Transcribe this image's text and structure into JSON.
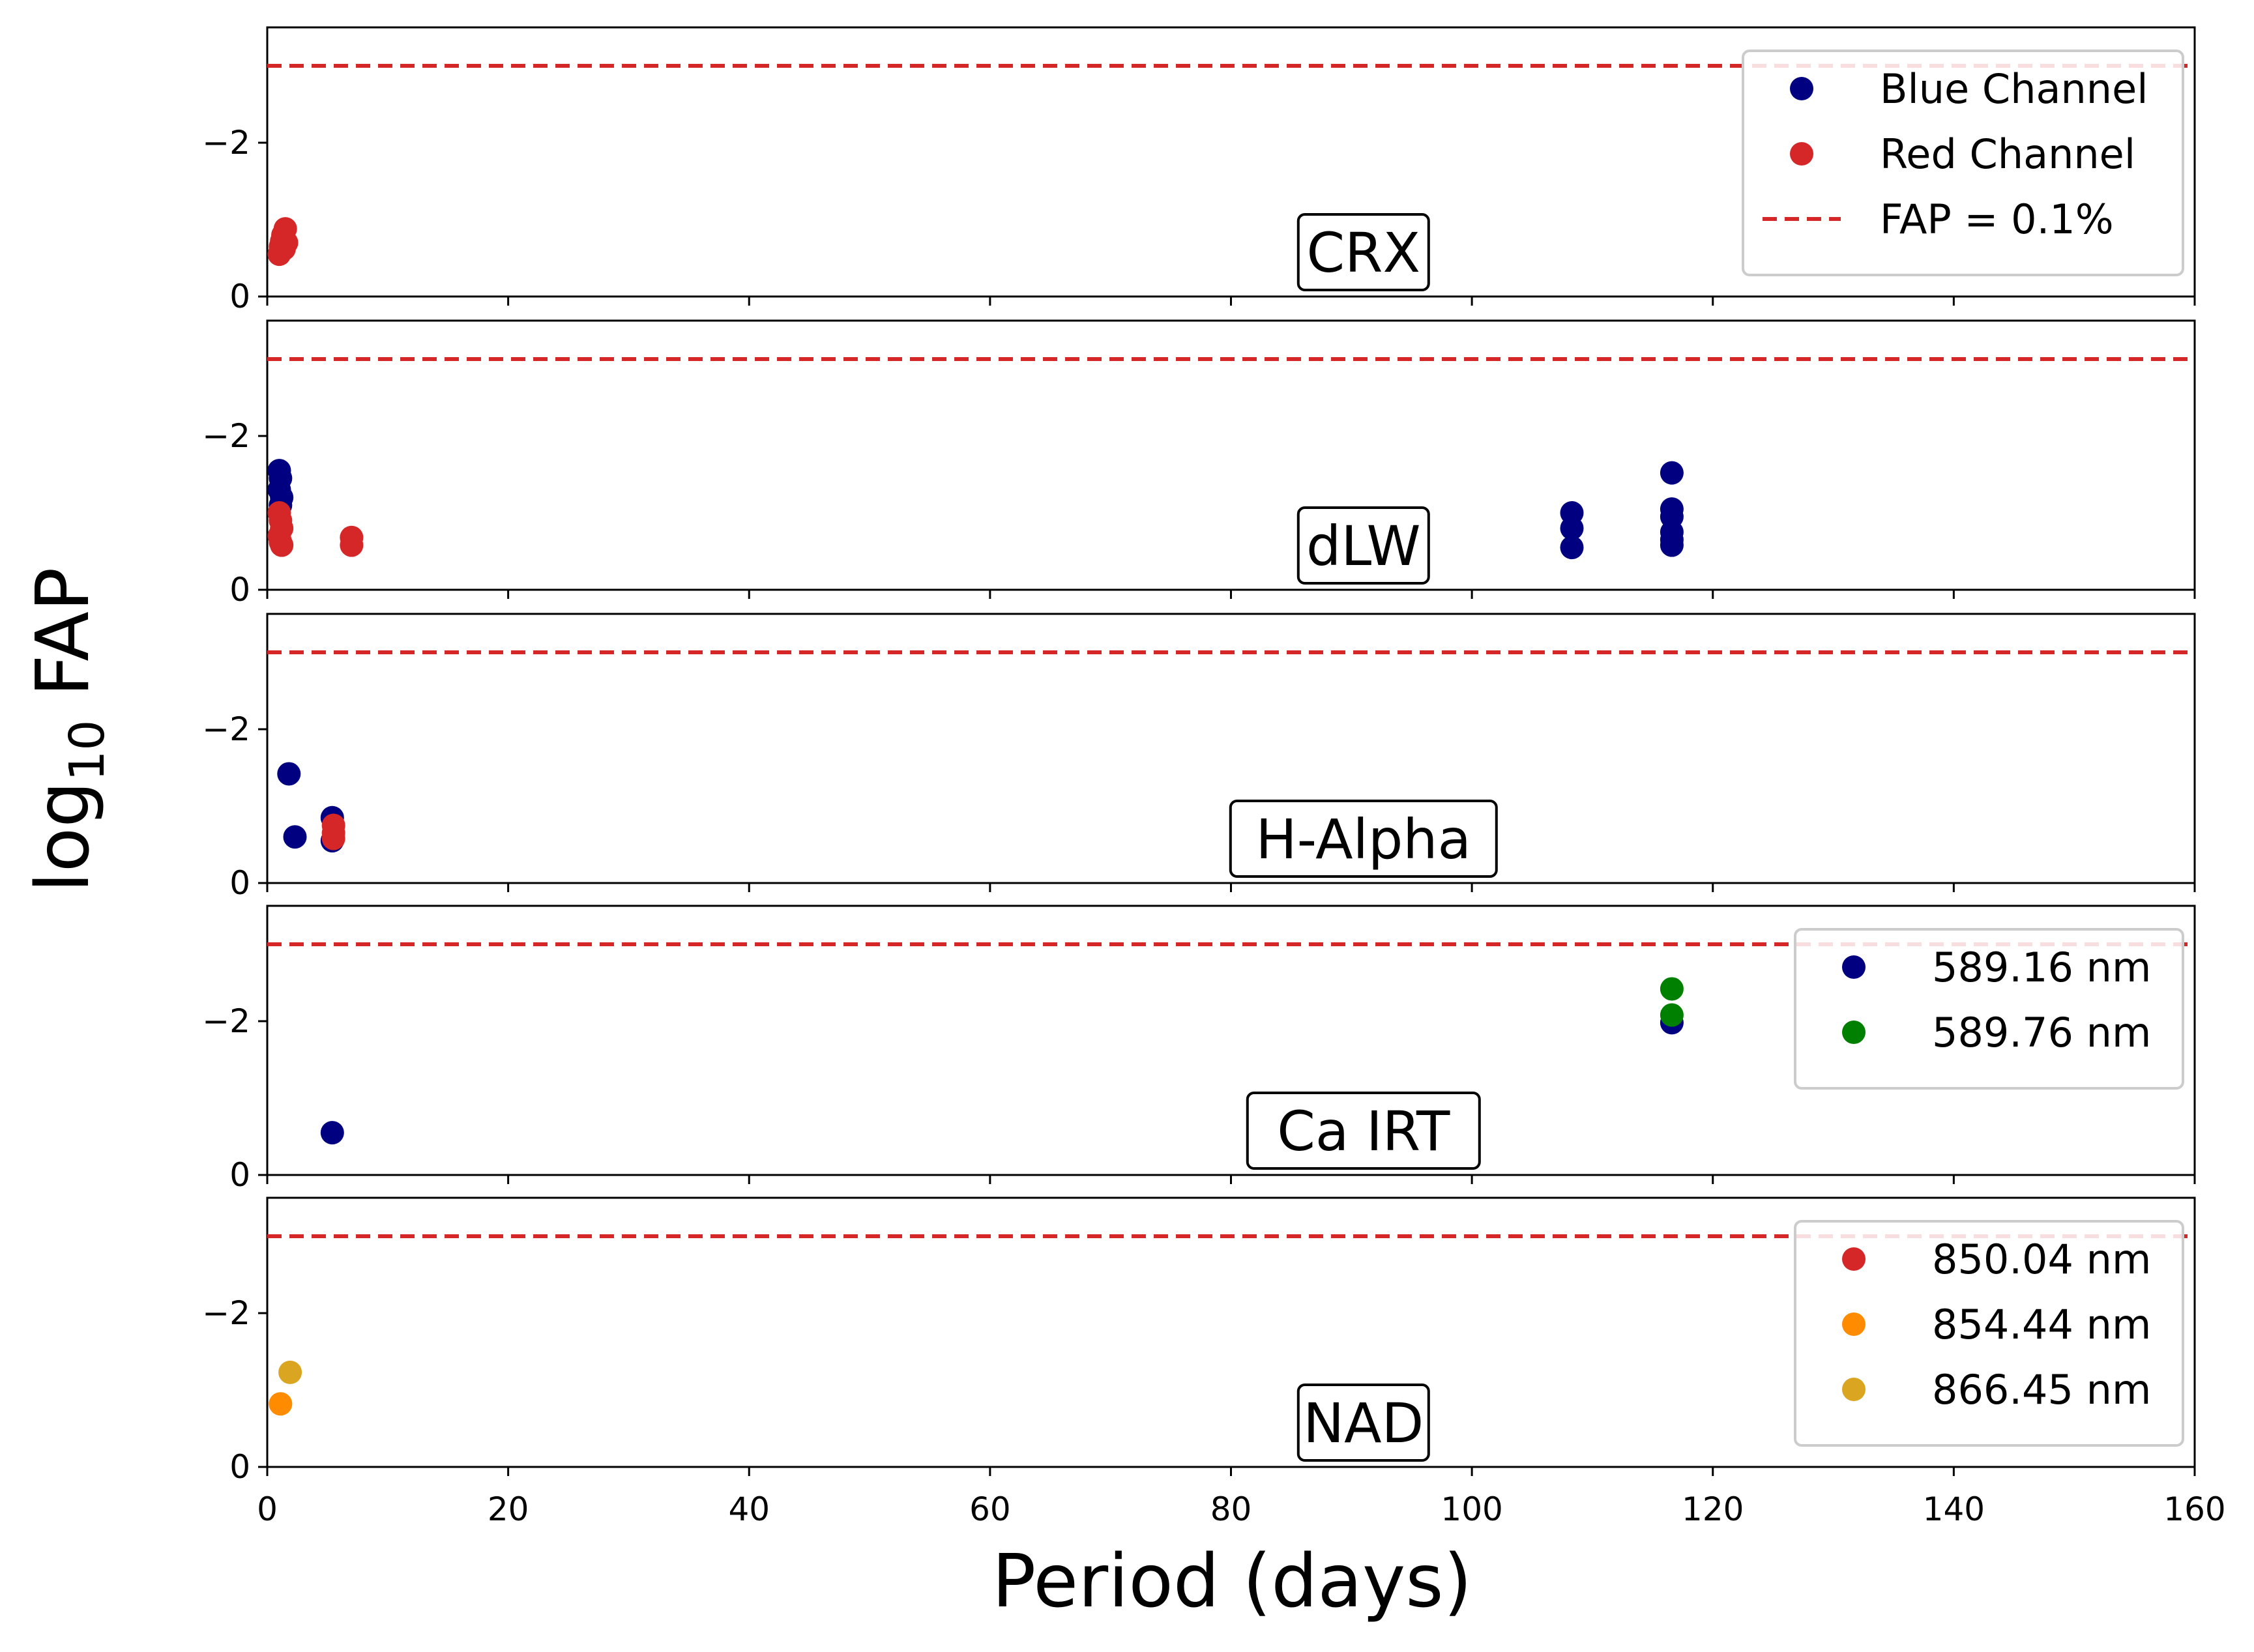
{
  "figure": {
    "xlabel": "Period (days)",
    "ylabel_base": "log",
    "ylabel_sub": "10",
    "ylabel_rest": " FAP"
  },
  "colors": {
    "blue": "#000080",
    "red": "#d62728",
    "green": "#008000",
    "orange": "#ff8c00",
    "gold": "#daa520",
    "threshold": "#d62728"
  },
  "chart_data": [
    {
      "type": "scatter",
      "title": "CRX",
      "xlabel": "Period (days)",
      "ylabel": "log10 FAP",
      "xlim": [
        0,
        160
      ],
      "ylim": [
        0,
        -3.5
      ],
      "xticks": [
        "0",
        "20",
        "40",
        "60",
        "80",
        "100",
        "120",
        "140",
        "160"
      ],
      "yticks": [
        {
          "value": 0,
          "label": "0"
        },
        {
          "value": -2,
          "label": "−2"
        }
      ],
      "threshold": -3,
      "legend": {
        "position": "top-right",
        "entries": [
          {
            "label": "Blue Channel",
            "kind": "marker",
            "color": "blue"
          },
          {
            "label": "Red Channel",
            "kind": "marker",
            "color": "red"
          },
          {
            "label": "FAP = 0.1%",
            "kind": "dashed",
            "color": "threshold"
          }
        ]
      },
      "series": [
        {
          "name": "Red Channel",
          "color": "red",
          "points": [
            [
              1.0,
              -0.55
            ],
            [
              1.1,
              -0.65
            ],
            [
              1.2,
              -0.72
            ],
            [
              1.3,
              -0.8
            ],
            [
              1.5,
              -0.88
            ],
            [
              1.4,
              -0.62
            ],
            [
              1.6,
              -0.7
            ]
          ]
        }
      ]
    },
    {
      "type": "scatter",
      "title": "dLW",
      "xlabel": "Period (days)",
      "ylabel": "log10 FAP",
      "xlim": [
        0,
        160
      ],
      "ylim": [
        0,
        -3.5
      ],
      "xticks": [
        "0",
        "20",
        "40",
        "60",
        "80",
        "100",
        "120",
        "140",
        "160"
      ],
      "yticks": [
        {
          "value": 0,
          "label": "0"
        },
        {
          "value": -2,
          "label": "−2"
        }
      ],
      "threshold": -3,
      "legend": null,
      "series": [
        {
          "name": "Blue Channel",
          "color": "blue",
          "points": [
            [
              1.0,
              -1.55
            ],
            [
              1.1,
              -1.45
            ],
            [
              1.0,
              -1.3
            ],
            [
              1.2,
              -1.2
            ],
            [
              1.1,
              -1.1
            ],
            [
              108.3,
              -1.0
            ],
            [
              108.3,
              -0.8
            ],
            [
              108.3,
              -0.55
            ],
            [
              116.6,
              -1.52
            ],
            [
              116.6,
              -1.05
            ],
            [
              116.6,
              -0.95
            ],
            [
              116.6,
              -0.75
            ],
            [
              116.6,
              -0.65
            ],
            [
              116.6,
              -0.58
            ]
          ]
        },
        {
          "name": "Red Channel",
          "color": "red",
          "points": [
            [
              1.0,
              -1.0
            ],
            [
              1.1,
              -0.9
            ],
            [
              1.2,
              -0.8
            ],
            [
              1.0,
              -0.7
            ],
            [
              1.1,
              -0.62
            ],
            [
              1.2,
              -0.58
            ],
            [
              7.0,
              -0.68
            ],
            [
              7.0,
              -0.58
            ]
          ]
        }
      ]
    },
    {
      "type": "scatter",
      "title": "H-Alpha",
      "xlabel": "Period (days)",
      "ylabel": "log10 FAP",
      "xlim": [
        0,
        160
      ],
      "ylim": [
        0,
        -3.5
      ],
      "xticks": [
        "0",
        "20",
        "40",
        "60",
        "80",
        "100",
        "120",
        "140",
        "160"
      ],
      "yticks": [
        {
          "value": 0,
          "label": "0"
        },
        {
          "value": -2,
          "label": "−2"
        }
      ],
      "threshold": -3,
      "legend": null,
      "series": [
        {
          "name": "Blue Channel",
          "color": "blue",
          "points": [
            [
              1.8,
              -1.42
            ],
            [
              2.3,
              -0.6
            ],
            [
              5.4,
              -0.85
            ],
            [
              5.4,
              -0.55
            ]
          ]
        },
        {
          "name": "Red Channel",
          "color": "red",
          "points": [
            [
              5.5,
              -0.75
            ],
            [
              5.5,
              -0.65
            ],
            [
              5.5,
              -0.58
            ]
          ]
        }
      ]
    },
    {
      "type": "scatter",
      "title": "Ca IRT",
      "xlabel": "Period (days)",
      "ylabel": "log10 FAP",
      "xlim": [
        0,
        160
      ],
      "ylim": [
        0,
        -3.5
      ],
      "xticks": [
        "0",
        "20",
        "40",
        "60",
        "80",
        "100",
        "120",
        "140",
        "160"
      ],
      "yticks": [
        {
          "value": 0,
          "label": "0"
        },
        {
          "value": -2,
          "label": "−2"
        }
      ],
      "threshold": -3,
      "legend": {
        "position": "top-right",
        "entries": [
          {
            "label": "589.16 nm",
            "kind": "marker",
            "color": "blue"
          },
          {
            "label": "589.76 nm",
            "kind": "marker",
            "color": "green"
          }
        ]
      },
      "series": [
        {
          "name": "589.16 nm",
          "color": "blue",
          "points": [
            [
              5.4,
              -0.55
            ],
            [
              116.6,
              -1.98
            ]
          ]
        },
        {
          "name": "589.76 nm",
          "color": "green",
          "points": [
            [
              116.6,
              -2.42
            ],
            [
              116.6,
              -2.08
            ]
          ]
        }
      ]
    },
    {
      "type": "scatter",
      "title": "NAD",
      "xlabel": "Period (days)",
      "ylabel": "log10 FAP",
      "xlim": [
        0,
        160
      ],
      "ylim": [
        0,
        -3.5
      ],
      "xticks": [
        "0",
        "20",
        "40",
        "60",
        "80",
        "100",
        "120",
        "140",
        "160"
      ],
      "yticks": [
        {
          "value": 0,
          "label": "0"
        },
        {
          "value": -2,
          "label": "−2"
        }
      ],
      "threshold": -3,
      "legend": {
        "position": "top-right",
        "entries": [
          {
            "label": "850.04 nm",
            "kind": "marker",
            "color": "red"
          },
          {
            "label": "854.44 nm",
            "kind": "marker",
            "color": "orange"
          },
          {
            "label": "866.45 nm",
            "kind": "marker",
            "color": "gold"
          }
        ]
      },
      "series": [
        {
          "name": "854.44 nm",
          "color": "orange",
          "points": [
            [
              1.1,
              -0.82
            ]
          ]
        },
        {
          "name": "866.45 nm",
          "color": "gold",
          "points": [
            [
              1.9,
              -1.23
            ]
          ]
        }
      ]
    }
  ]
}
